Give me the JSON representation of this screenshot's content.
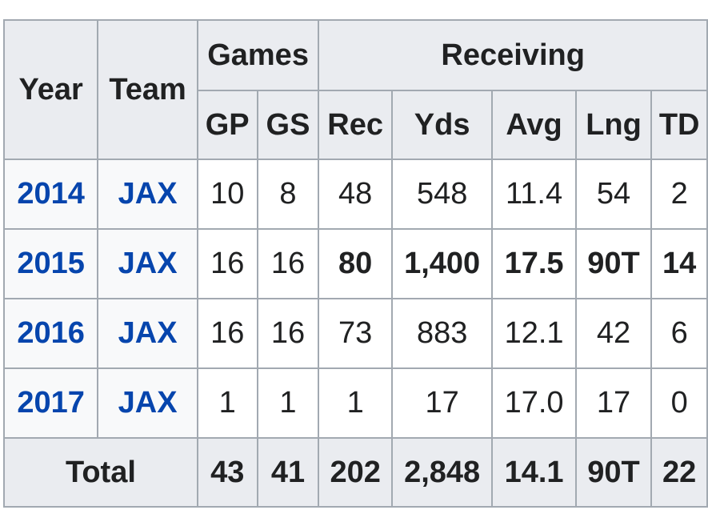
{
  "headers": {
    "year": "Year",
    "team": "Team",
    "games": "Games",
    "receiving": "Receiving",
    "gp": "GP",
    "gs": "GS",
    "rec": "Rec",
    "yds": "Yds",
    "avg": "Avg",
    "lng": "Lng",
    "td": "TD"
  },
  "rows": [
    {
      "year": "2014",
      "team": "JAX",
      "gp": "10",
      "gs": "8",
      "rec": "48",
      "yds": "548",
      "avg": "11.4",
      "lng": "54",
      "td": "2"
    },
    {
      "year": "2015",
      "team": "JAX",
      "gp": "16",
      "gs": "16",
      "rec": "80",
      "yds": "1,400",
      "avg": "17.5",
      "lng": "90T",
      "td": "14"
    },
    {
      "year": "2016",
      "team": "JAX",
      "gp": "16",
      "gs": "16",
      "rec": "73",
      "yds": "883",
      "avg": "12.1",
      "lng": "42",
      "td": "6"
    },
    {
      "year": "2017",
      "team": "JAX",
      "gp": "1",
      "gs": "1",
      "rec": "1",
      "yds": "17",
      "avg": "17.0",
      "lng": "17",
      "td": "0"
    }
  ],
  "total": {
    "label": "Total",
    "gp": "43",
    "gs": "41",
    "rec": "202",
    "yds": "2,848",
    "avg": "14.1",
    "lng": "90T",
    "td": "22"
  },
  "colors": {
    "link": "#0645ad",
    "header_bg": "#eaecf0",
    "border": "#a2a9b1"
  }
}
